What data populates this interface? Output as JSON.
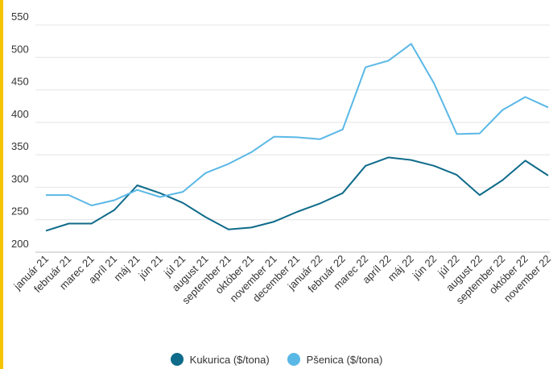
{
  "chart_data": {
    "type": "line",
    "categories": [
      "január 21",
      "február 21",
      "marec 21",
      "apríl 21",
      "máj 21",
      "jún 21",
      "júl 21",
      "august 21",
      "september 21",
      "október 21",
      "november 21",
      "december 21",
      "január 22",
      "február 22",
      "marec 22",
      "apríl 22",
      "máj 22",
      "jún 22",
      "júl 22",
      "august 22",
      "september 22",
      "október 22",
      "november 22"
    ],
    "series": [
      {
        "name": "Kukurica ($/tona)",
        "color": "#0f6b8a",
        "values": [
          233,
          244,
          244,
          265,
          303,
          291,
          276,
          254,
          235,
          238,
          247,
          262,
          275,
          291,
          333,
          346,
          342,
          333,
          319,
          288,
          311,
          341,
          318
        ]
      },
      {
        "name": "Pšenica ($/tona)",
        "color": "#5ab8e6",
        "values": [
          288,
          288,
          272,
          280,
          296,
          285,
          293,
          322,
          336,
          354,
          378,
          377,
          374,
          389,
          485,
          495,
          521,
          460,
          382,
          383,
          419,
          439,
          423
        ]
      }
    ],
    "yticks": [
      200,
      250,
      300,
      350,
      400,
      450,
      500,
      550
    ],
    "ylim": [
      200,
      550
    ],
    "grid": true,
    "legend_position": "bottom"
  }
}
